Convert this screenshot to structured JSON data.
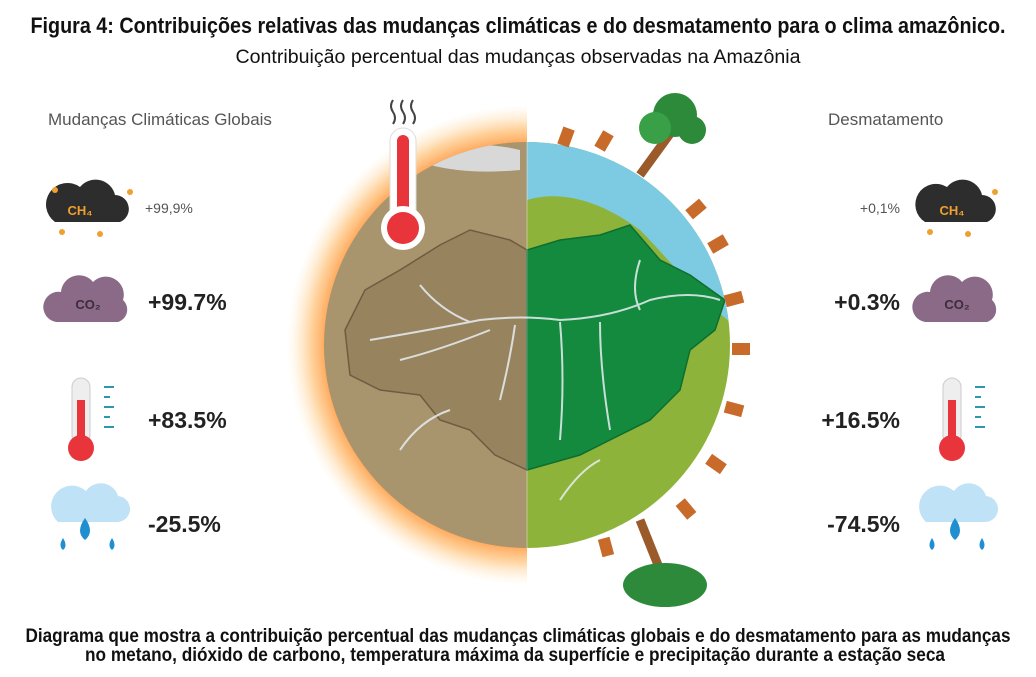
{
  "header": {
    "title": "Figura 4: Contribuições relativas das mudanças climáticas e do desmatamento para o clima amazônico.",
    "subtitle": "Contribuição percentual das mudanças observadas na Amazônia"
  },
  "columns": [
    {
      "label": "Mudanças Climáticas Globais"
    },
    {
      "label": "Desmatamento"
    }
  ],
  "rows": [
    {
      "icon_label": "CH₄",
      "left": "+99,9%",
      "right": "+0,1%"
    },
    {
      "icon_label": "CO₂",
      "left": "+99.7%",
      "right": "+0.3%"
    },
    {
      "left": "+83.5%",
      "right": "+16.5%"
    },
    {
      "left": "-25.5%",
      "right": "-74.5%"
    }
  ],
  "caption": [
    "Diagrama que mostra a contribuição percentual das mudanças climáticas globais e do desmatamento para as mudanças",
    "no metano, dióxido de carbono, temperatura máxima da superfície e precipitação durante a estação seca"
  ]
}
